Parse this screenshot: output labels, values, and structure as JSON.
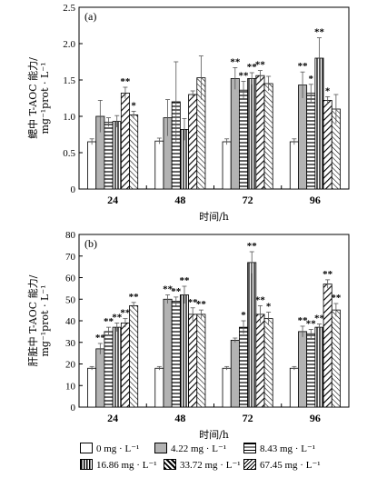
{
  "chart_data": [
    {
      "type": "bar",
      "panel": "(a)",
      "ylabel_lines": [
        "鳃中 T-AOC 能力/",
        "mg⁻¹prot · L⁻¹"
      ],
      "xlabel": "时间/h",
      "categories": [
        "24",
        "48",
        "72",
        "96"
      ],
      "ylim": [
        0,
        2.5
      ],
      "yticks": [
        "0",
        "0.5",
        "1.0",
        "1.5",
        "2.0",
        "2.5"
      ],
      "series": [
        {
          "name": "0 mg · L⁻¹",
          "values": [
            0.65,
            0.66,
            0.65,
            0.65
          ],
          "errors": [
            0.04,
            0.04,
            0.04,
            0.04
          ],
          "marks": [
            "",
            "",
            "",
            ""
          ]
        },
        {
          "name": "4.22 mg · L⁻¹",
          "values": [
            1.0,
            0.98,
            1.52,
            1.43
          ],
          "errors": [
            0.22,
            0.25,
            0.15,
            0.18
          ],
          "marks": [
            "",
            "",
            "**",
            "**"
          ]
        },
        {
          "name": "8.43 mg · L⁻¹",
          "values": [
            0.92,
            1.2,
            1.36,
            1.32
          ],
          "errors": [
            0.06,
            0.55,
            0.12,
            0.12
          ],
          "marks": [
            "",
            "",
            "**",
            "*"
          ]
        },
        {
          "name": "16.86 mg · L⁻¹",
          "values": [
            0.93,
            0.82,
            1.52,
            1.8
          ],
          "errors": [
            0.08,
            0.15,
            0.08,
            0.28
          ],
          "marks": [
            "",
            "",
            "**",
            "**"
          ]
        },
        {
          "name": "33.72 mg · L⁻¹",
          "values": [
            1.32,
            1.3,
            1.56,
            1.22
          ],
          "errors": [
            0.08,
            0.05,
            0.07,
            0.05
          ],
          "marks": [
            "**",
            "",
            "**",
            "*"
          ]
        },
        {
          "name": "67.45 mg · L⁻¹",
          "values": [
            1.02,
            1.53,
            1.45,
            1.1
          ],
          "errors": [
            0.05,
            0.3,
            0.1,
            0.2
          ],
          "marks": [
            "*",
            "",
            "",
            ""
          ]
        }
      ]
    },
    {
      "type": "bar",
      "panel": "(b)",
      "ylabel_lines": [
        "肝脏中 T-AOC 能力/",
        "mg⁻¹prot · L⁻¹"
      ],
      "xlabel": "时间/h",
      "categories": [
        "24",
        "48",
        "72",
        "96"
      ],
      "ylim": [
        0,
        80
      ],
      "yticks": [
        "0",
        "10",
        "20",
        "30",
        "40",
        "50",
        "60",
        "70",
        "80"
      ],
      "series": [
        {
          "name": "0 mg · L⁻¹",
          "values": [
            18,
            18,
            18,
            18
          ],
          "errors": [
            0.8,
            0.8,
            0.8,
            0.8
          ],
          "marks": [
            "",
            "",
            "",
            ""
          ]
        },
        {
          "name": "4.22 mg · L⁻¹",
          "values": [
            27,
            50,
            31,
            35
          ],
          "errors": [
            2.5,
            2.0,
            1.0,
            2.5
          ],
          "marks": [
            "**",
            "**",
            "",
            "**"
          ]
        },
        {
          "name": "8.43 mg · L⁻¹",
          "values": [
            35,
            49,
            37,
            34
          ],
          "errors": [
            2.0,
            2.0,
            3.0,
            2.0
          ],
          "marks": [
            "**",
            "**",
            "*",
            "**"
          ]
        },
        {
          "name": "16.86 mg · L⁻¹",
          "values": [
            37,
            52,
            67,
            37
          ],
          "errors": [
            2.0,
            4.0,
            5.0,
            1.5
          ],
          "marks": [
            "**",
            "**",
            "**",
            "**"
          ]
        },
        {
          "name": "33.72 mg · L⁻¹",
          "values": [
            39,
            43,
            43,
            57
          ],
          "errors": [
            2.0,
            3.0,
            4.0,
            2.0
          ],
          "marks": [
            "**",
            "**",
            "**",
            "**"
          ]
        },
        {
          "name": "67.45 mg · L⁻¹",
          "values": [
            47,
            43,
            41,
            45
          ],
          "errors": [
            1.5,
            2.0,
            3.0,
            3.0
          ],
          "marks": [
            "**",
            "**",
            "*",
            "**"
          ]
        }
      ]
    }
  ],
  "legend": {
    "items": [
      {
        "label": "0 mg · L⁻¹"
      },
      {
        "label": "4.22 mg · L⁻¹"
      },
      {
        "label": "8.43 mg · L⁻¹"
      },
      {
        "label": "16.86 mg · L⁻¹"
      },
      {
        "label": "33.72 mg · L⁻¹"
      },
      {
        "label": "67.45 mg · L⁻¹"
      }
    ]
  }
}
